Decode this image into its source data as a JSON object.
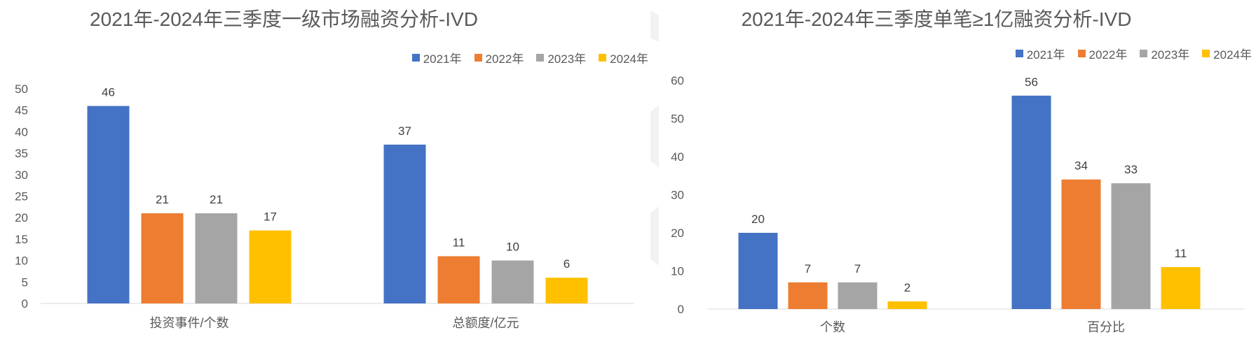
{
  "colors": [
    "#4472C4",
    "#ED7D31",
    "#A5A5A5",
    "#FFC000"
  ],
  "chart_data": [
    {
      "type": "bar",
      "title": "2021年-2024年三季度一级市场融资分析-IVD",
      "categories": [
        "投资事件/个数",
        "总额度/亿元"
      ],
      "series": [
        {
          "name": "2021年",
          "values": [
            46,
            37
          ]
        },
        {
          "name": "2022年",
          "values": [
            21,
            11
          ]
        },
        {
          "name": "2023年",
          "values": [
            21,
            10
          ]
        },
        {
          "name": "2024年",
          "values": [
            17,
            6
          ]
        }
      ],
      "yticks": [
        "0",
        "5",
        "10",
        "15",
        "20",
        "25",
        "30",
        "35",
        "40",
        "45",
        "50"
      ],
      "ylim": [
        0,
        50
      ],
      "grid": false,
      "legend": "top-right"
    },
    {
      "type": "bar",
      "title": "2021年-2024年三季度单笔≥1亿融资分析-IVD",
      "categories": [
        "个数",
        "百分比"
      ],
      "series": [
        {
          "name": "2021年",
          "values": [
            20,
            56
          ]
        },
        {
          "name": "2022年",
          "values": [
            7,
            34
          ]
        },
        {
          "name": "2023年",
          "values": [
            7,
            33
          ]
        },
        {
          "name": "2024年",
          "values": [
            2,
            11
          ]
        }
      ],
      "yticks": [
        "0",
        "10",
        "20",
        "30",
        "40",
        "50",
        "60"
      ],
      "ylim": [
        0,
        60
      ],
      "grid": false,
      "legend": "top-right"
    }
  ]
}
